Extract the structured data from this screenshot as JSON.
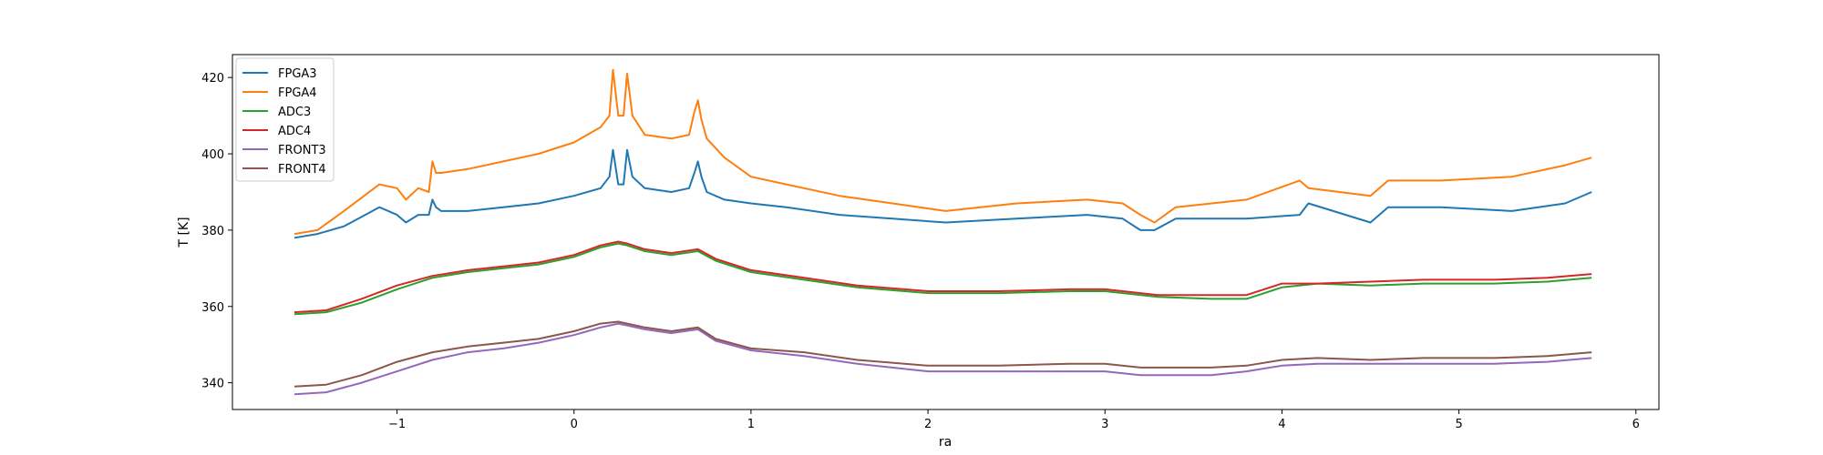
{
  "chart_data": {
    "type": "line",
    "title": "",
    "xlabel": "ra",
    "ylabel": "T [K]",
    "xlim": [
      -1.93,
      6.13
    ],
    "ylim": [
      333,
      426
    ],
    "x_ticks": [
      -1,
      0,
      1,
      2,
      3,
      4,
      5,
      6
    ],
    "x_tick_labels": [
      "−1",
      "0",
      "1",
      "2",
      "3",
      "4",
      "5",
      "6"
    ],
    "y_ticks": [
      340,
      360,
      380,
      400,
      420
    ],
    "y_tick_labels": [
      "340",
      "360",
      "380",
      "400",
      "420"
    ],
    "grid": false,
    "legend_position": "top-left",
    "colors": {
      "FPGA3": "#1f77b4",
      "FPGA4": "#ff7f0e",
      "ADC3": "#2ca02c",
      "ADC4": "#d62728",
      "FRONT3": "#9467bd",
      "FRONT4": "#8c564b"
    },
    "series": [
      {
        "name": "FPGA3",
        "x": [
          -1.58,
          -1.45,
          -1.3,
          -1.1,
          -1.0,
          -0.95,
          -0.88,
          -0.82,
          -0.8,
          -0.78,
          -0.75,
          -0.6,
          -0.4,
          -0.2,
          0.0,
          0.15,
          0.2,
          0.22,
          0.25,
          0.28,
          0.3,
          0.33,
          0.4,
          0.55,
          0.65,
          0.68,
          0.7,
          0.72,
          0.75,
          0.85,
          1.0,
          1.2,
          1.5,
          1.8,
          2.1,
          2.5,
          2.9,
          3.1,
          3.2,
          3.28,
          3.4,
          3.8,
          4.1,
          4.15,
          4.5,
          4.6,
          4.9,
          5.3,
          5.6,
          5.75
        ],
        "values": [
          378,
          379,
          381,
          386,
          384,
          382,
          384,
          384,
          388,
          386,
          385,
          385,
          386,
          387,
          389,
          391,
          394,
          401,
          392,
          392,
          401,
          394,
          391,
          390,
          391,
          395,
          398,
          394,
          390,
          388,
          387,
          386,
          384,
          383,
          382,
          383,
          384,
          383,
          380,
          380,
          383,
          383,
          384,
          387,
          382,
          386,
          386,
          385,
          387,
          390
        ]
      },
      {
        "name": "FPGA4",
        "x": [
          -1.58,
          -1.45,
          -1.3,
          -1.1,
          -1.0,
          -0.95,
          -0.88,
          -0.82,
          -0.8,
          -0.78,
          -0.75,
          -0.6,
          -0.4,
          -0.2,
          0.0,
          0.15,
          0.2,
          0.22,
          0.25,
          0.28,
          0.3,
          0.33,
          0.4,
          0.55,
          0.65,
          0.68,
          0.7,
          0.72,
          0.75,
          0.85,
          1.0,
          1.2,
          1.5,
          1.8,
          2.1,
          2.5,
          2.9,
          3.1,
          3.2,
          3.28,
          3.4,
          3.8,
          4.1,
          4.15,
          4.5,
          4.6,
          4.9,
          5.3,
          5.6,
          5.75
        ],
        "values": [
          379,
          380,
          385,
          392,
          391,
          388,
          391,
          390,
          398,
          395,
          395,
          396,
          398,
          400,
          403,
          407,
          410,
          422,
          410,
          410,
          421,
          410,
          405,
          404,
          405,
          411,
          414,
          409,
          404,
          399,
          394,
          392,
          389,
          387,
          385,
          387,
          388,
          387,
          384,
          382,
          386,
          388,
          393,
          391,
          389,
          393,
          393,
          394,
          397,
          399
        ]
      },
      {
        "name": "ADC3",
        "x": [
          -1.58,
          -1.4,
          -1.2,
          -1.0,
          -0.8,
          -0.6,
          -0.4,
          -0.2,
          0.0,
          0.15,
          0.25,
          0.3,
          0.4,
          0.55,
          0.7,
          0.8,
          1.0,
          1.3,
          1.6,
          2.0,
          2.4,
          2.8,
          3.0,
          3.3,
          3.6,
          3.8,
          4.0,
          4.2,
          4.5,
          4.8,
          5.2,
          5.5,
          5.75
        ],
        "values": [
          358,
          358.5,
          361,
          364.5,
          367.5,
          369,
          370,
          371,
          373,
          375.5,
          376.5,
          376,
          374.5,
          373.5,
          374.5,
          372,
          369,
          367,
          365,
          363.5,
          363.5,
          364,
          364,
          362.5,
          362,
          362,
          365,
          366,
          365.5,
          366,
          366,
          366.5,
          367.5
        ]
      },
      {
        "name": "ADC4",
        "x": [
          -1.58,
          -1.4,
          -1.2,
          -1.0,
          -0.8,
          -0.6,
          -0.4,
          -0.2,
          0.0,
          0.15,
          0.25,
          0.3,
          0.4,
          0.55,
          0.7,
          0.8,
          1.0,
          1.3,
          1.6,
          2.0,
          2.4,
          2.8,
          3.0,
          3.3,
          3.6,
          3.8,
          4.0,
          4.2,
          4.5,
          4.8,
          5.2,
          5.5,
          5.75
        ],
        "values": [
          358.5,
          359,
          362,
          365.5,
          368,
          369.5,
          370.5,
          371.5,
          373.5,
          376,
          377,
          376.5,
          375,
          374,
          375,
          372.5,
          369.5,
          367.5,
          365.5,
          364,
          364,
          364.5,
          364.5,
          363,
          363,
          363,
          366,
          366,
          366.5,
          367,
          367,
          367.5,
          368.5
        ]
      },
      {
        "name": "FRONT3",
        "x": [
          -1.58,
          -1.4,
          -1.2,
          -1.0,
          -0.8,
          -0.6,
          -0.4,
          -0.2,
          0.0,
          0.15,
          0.25,
          0.3,
          0.4,
          0.55,
          0.7,
          0.8,
          1.0,
          1.3,
          1.6,
          2.0,
          2.4,
          2.8,
          3.0,
          3.2,
          3.6,
          3.8,
          4.0,
          4.2,
          4.5,
          4.8,
          5.2,
          5.5,
          5.75
        ],
        "values": [
          337,
          337.5,
          340,
          343,
          346,
          348,
          349,
          350.5,
          352.5,
          354.5,
          355.5,
          355,
          354,
          353,
          354,
          351,
          348.5,
          347,
          345,
          343,
          343,
          343,
          343,
          342,
          342,
          343,
          344.5,
          345,
          345,
          345,
          345,
          345.5,
          346.5
        ]
      },
      {
        "name": "FRONT4",
        "x": [
          -1.58,
          -1.4,
          -1.2,
          -1.0,
          -0.8,
          -0.6,
          -0.4,
          -0.2,
          0.0,
          0.15,
          0.25,
          0.3,
          0.4,
          0.55,
          0.7,
          0.8,
          1.0,
          1.3,
          1.6,
          2.0,
          2.4,
          2.8,
          3.0,
          3.2,
          3.6,
          3.8,
          4.0,
          4.2,
          4.5,
          4.8,
          5.2,
          5.5,
          5.75
        ],
        "values": [
          339,
          339.5,
          342,
          345.5,
          348,
          349.5,
          350.5,
          351.5,
          353.5,
          355.5,
          356,
          355.5,
          354.5,
          353.5,
          354.5,
          351.5,
          349,
          348,
          346,
          344.5,
          344.5,
          345,
          345,
          344,
          344,
          344.5,
          346,
          346.5,
          346,
          346.5,
          346.5,
          347,
          348
        ]
      }
    ]
  }
}
